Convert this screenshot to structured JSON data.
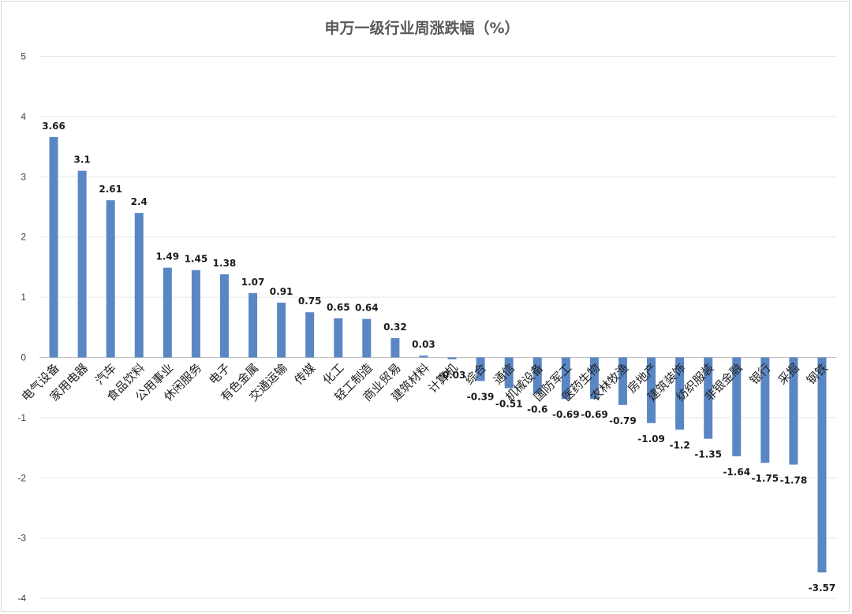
{
  "chart_data": {
    "type": "bar",
    "title": "申万一级行业周涨跌幅（%）",
    "xlabel": "",
    "ylabel": "",
    "ylim": [
      -4,
      5
    ],
    "yticks": [
      5,
      4,
      3,
      2,
      1,
      0,
      -1,
      -2,
      -3,
      -4
    ],
    "grid": true,
    "bar_color": "#5a87c4",
    "categories": [
      "电气设备",
      "家用电器",
      "汽车",
      "食品饮料",
      "公用事业",
      "休闲服务",
      "电子",
      "有色金属",
      "交通运输",
      "传媒",
      "化工",
      "轻工制造",
      "商业贸易",
      "建筑材料",
      "计算机",
      "综合",
      "通信",
      "机械设备",
      "国防军工",
      "医药生物",
      "农林牧渔",
      "房地产",
      "建筑装饰",
      "纺织服装",
      "非银金融",
      "银行",
      "采掘",
      "钢铁"
    ],
    "values": [
      3.66,
      3.1,
      2.61,
      2.4,
      1.49,
      1.45,
      1.38,
      1.07,
      0.91,
      0.75,
      0.65,
      0.64,
      0.32,
      0.03,
      -0.03,
      -0.39,
      -0.51,
      -0.6,
      -0.69,
      -0.69,
      -0.79,
      -1.09,
      -1.2,
      -1.35,
      -1.64,
      -1.75,
      -1.78,
      -3.57
    ],
    "data_labels": [
      "3.66",
      "3.1",
      "2.61",
      "2.4",
      "1.49",
      "1.45",
      "1.38",
      "1.07",
      "0.91",
      "0.75",
      "0.65",
      "0.64",
      "0.32",
      "0.03",
      "-0.03",
      "-0.39",
      "-0.51",
      "-0.6",
      "-0.69",
      "-0.69",
      "-0.79",
      "-1.09",
      "-1.2",
      "-1.35",
      "-1.64",
      "-1.75",
      "-1.78",
      "-3.57"
    ]
  }
}
